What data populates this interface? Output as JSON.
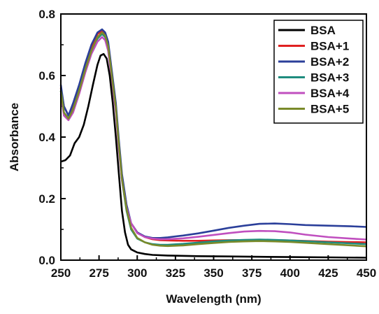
{
  "chart_data": {
    "type": "line",
    "xlabel": "Wavelength (nm)",
    "ylabel": "Absorbance",
    "xlim": [
      250,
      450
    ],
    "ylim": [
      0.0,
      0.8
    ],
    "xticks": [
      "250",
      "275",
      "300",
      "325",
      "350",
      "375",
      "400",
      "425",
      "450"
    ],
    "yticks": [
      "0.0",
      "0.2",
      "0.4",
      "0.6",
      "0.8"
    ],
    "grid": false,
    "legend_position": "top-right",
    "series": [
      {
        "name": "BSA",
        "color": "#000000",
        "x": [
          250,
          253,
          256,
          259,
          262,
          265,
          268,
          271,
          274,
          276,
          278,
          280,
          282,
          284,
          286,
          288,
          290,
          292,
          294,
          296,
          298,
          300,
          305,
          310,
          320,
          340,
          360,
          380,
          400,
          425,
          450
        ],
        "y": [
          0.32,
          0.325,
          0.34,
          0.38,
          0.4,
          0.44,
          0.5,
          0.57,
          0.635,
          0.665,
          0.67,
          0.655,
          0.6,
          0.51,
          0.4,
          0.28,
          0.16,
          0.09,
          0.05,
          0.035,
          0.03,
          0.025,
          0.02,
          0.017,
          0.015,
          0.013,
          0.012,
          0.011,
          0.01,
          0.009,
          0.008
        ]
      },
      {
        "name": "BSA+1",
        "color": "#e02020",
        "x": [
          250,
          252,
          255,
          258,
          262,
          266,
          270,
          274,
          277,
          279,
          281,
          283,
          286,
          288,
          290,
          293,
          296,
          300,
          305,
          310,
          315,
          320,
          330,
          340,
          350,
          360,
          380,
          400,
          425,
          450
        ],
        "y": [
          0.56,
          0.5,
          0.47,
          0.5,
          0.56,
          0.63,
          0.69,
          0.735,
          0.745,
          0.735,
          0.7,
          0.62,
          0.5,
          0.38,
          0.27,
          0.17,
          0.12,
          0.09,
          0.075,
          0.068,
          0.065,
          0.064,
          0.063,
          0.063,
          0.064,
          0.065,
          0.066,
          0.064,
          0.06,
          0.058
        ]
      },
      {
        "name": "BSA+2",
        "color": "#2b3f9a",
        "x": [
          250,
          252,
          255,
          258,
          262,
          266,
          270,
          274,
          277,
          279,
          281,
          283,
          286,
          288,
          290,
          293,
          296,
          300,
          305,
          310,
          315,
          320,
          330,
          340,
          350,
          360,
          370,
          380,
          390,
          400,
          410,
          425,
          440,
          450
        ],
        "y": [
          0.57,
          0.5,
          0.47,
          0.51,
          0.57,
          0.64,
          0.7,
          0.74,
          0.75,
          0.74,
          0.71,
          0.63,
          0.51,
          0.39,
          0.28,
          0.18,
          0.12,
          0.09,
          0.077,
          0.072,
          0.072,
          0.074,
          0.08,
          0.087,
          0.096,
          0.105,
          0.112,
          0.118,
          0.119,
          0.117,
          0.114,
          0.112,
          0.11,
          0.108
        ]
      },
      {
        "name": "BSA+3",
        "color": "#1e8c7e",
        "x": [
          250,
          252,
          255,
          258,
          262,
          266,
          270,
          274,
          277,
          279,
          281,
          283,
          286,
          288,
          290,
          293,
          296,
          300,
          305,
          310,
          315,
          320,
          330,
          340,
          350,
          360,
          370,
          380,
          390,
          400,
          425,
          450
        ],
        "y": [
          0.55,
          0.48,
          0.46,
          0.49,
          0.55,
          0.62,
          0.68,
          0.72,
          0.735,
          0.725,
          0.69,
          0.61,
          0.49,
          0.37,
          0.26,
          0.16,
          0.1,
          0.07,
          0.058,
          0.052,
          0.05,
          0.05,
          0.053,
          0.057,
          0.061,
          0.064,
          0.066,
          0.067,
          0.066,
          0.064,
          0.058,
          0.052
        ]
      },
      {
        "name": "BSA+4",
        "color": "#c04fbf",
        "x": [
          250,
          252,
          255,
          258,
          262,
          266,
          270,
          274,
          277,
          279,
          281,
          283,
          286,
          288,
          290,
          293,
          296,
          300,
          305,
          310,
          315,
          320,
          330,
          340,
          350,
          360,
          370,
          380,
          390,
          400,
          410,
          425,
          440,
          450
        ],
        "y": [
          0.54,
          0.47,
          0.455,
          0.48,
          0.54,
          0.61,
          0.67,
          0.71,
          0.725,
          0.715,
          0.68,
          0.6,
          0.48,
          0.36,
          0.26,
          0.17,
          0.12,
          0.088,
          0.075,
          0.07,
          0.068,
          0.068,
          0.071,
          0.076,
          0.082,
          0.088,
          0.093,
          0.095,
          0.094,
          0.09,
          0.083,
          0.075,
          0.07,
          0.067
        ]
      },
      {
        "name": "BSA+5",
        "color": "#7a8a2a",
        "x": [
          250,
          252,
          255,
          258,
          262,
          266,
          270,
          274,
          277,
          279,
          281,
          283,
          286,
          288,
          290,
          293,
          296,
          300,
          305,
          310,
          315,
          320,
          330,
          340,
          350,
          360,
          370,
          380,
          390,
          400,
          425,
          450
        ],
        "y": [
          0.55,
          0.48,
          0.46,
          0.49,
          0.55,
          0.62,
          0.68,
          0.725,
          0.74,
          0.73,
          0.695,
          0.615,
          0.495,
          0.375,
          0.265,
          0.165,
          0.105,
          0.072,
          0.058,
          0.05,
          0.047,
          0.046,
          0.048,
          0.052,
          0.056,
          0.059,
          0.061,
          0.062,
          0.061,
          0.059,
          0.052,
          0.045
        ]
      }
    ]
  }
}
